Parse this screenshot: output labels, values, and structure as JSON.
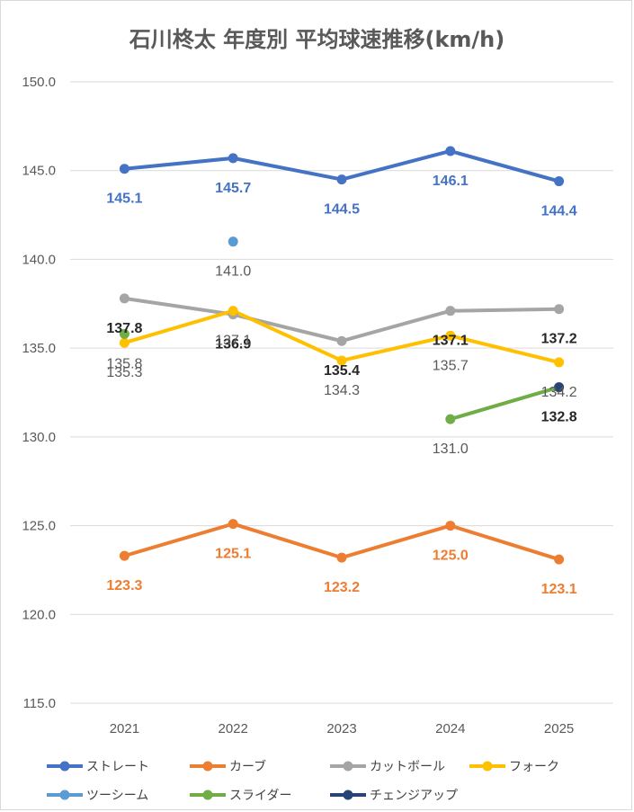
{
  "chart_data": {
    "type": "line",
    "title": "石川柊太 年度別 平均球速推移(km/h)",
    "categories": [
      "2021",
      "2022",
      "2023",
      "2024",
      "2025"
    ],
    "ylim": [
      115.0,
      150.0
    ],
    "yticks": [
      "150.0",
      "145.0",
      "140.0",
      "135.0",
      "130.0",
      "125.0",
      "120.0",
      "115.0"
    ],
    "ytick_values": [
      150,
      145,
      140,
      135,
      130,
      125,
      120,
      115
    ],
    "grid": true,
    "legend_position": "bottom",
    "series": [
      {
        "name": "ストレート",
        "color": "#4472C4",
        "values": [
          145.1,
          145.7,
          144.5,
          146.1,
          144.4
        ],
        "labels": [
          "145.1",
          "145.7",
          "144.5",
          "146.1",
          "144.4"
        ],
        "label_pos": "below",
        "label_color": "#4472C4",
        "label_bold": true
      },
      {
        "name": "カーブ",
        "color": "#ED7D31",
        "values": [
          123.3,
          125.1,
          123.2,
          125.0,
          123.1
        ],
        "labels": [
          "123.3",
          "125.1",
          "123.2",
          "125.0",
          "123.1"
        ],
        "label_pos": "below",
        "label_color": "#ED7D31",
        "label_bold": true
      },
      {
        "name": "カットボール",
        "color": "#A5A5A5",
        "values": [
          137.8,
          136.9,
          135.4,
          137.1,
          137.2
        ],
        "labels": [
          "137.8",
          "136.9",
          "135.4",
          "137.1",
          "137.2"
        ],
        "label_pos": "below",
        "label_color": "#262626",
        "label_bold": true
      },
      {
        "name": "フォーク",
        "color": "#FFC000",
        "values": [
          135.3,
          137.1,
          134.3,
          135.7,
          134.2
        ],
        "labels": [
          "135.3",
          "137.1",
          "134.3",
          "135.7",
          "134.2"
        ],
        "label_pos": "below",
        "label_color": "#595959",
        "label_bold": false
      },
      {
        "name": "ツーシーム",
        "color": "#5B9BD5",
        "values": [
          null,
          141.0,
          null,
          null,
          null
        ],
        "labels": [
          null,
          "141.0",
          null,
          null,
          null
        ],
        "label_pos": "below",
        "label_color": "#595959",
        "label_bold": false
      },
      {
        "name": "スライダー",
        "color": "#70AD47",
        "values": [
          135.8,
          null,
          null,
          131.0,
          132.8
        ],
        "labels": [
          "135.8",
          null,
          null,
          "131.0",
          null
        ],
        "label_pos": "below",
        "label_color": "#595959",
        "label_bold": false
      },
      {
        "name": "チェンジアップ",
        "color": "#264478",
        "values": [
          null,
          null,
          null,
          null,
          132.8
        ],
        "labels": [
          null,
          null,
          null,
          null,
          "132.8"
        ],
        "label_pos": "below",
        "label_color": "#262626",
        "label_bold": true
      }
    ]
  }
}
